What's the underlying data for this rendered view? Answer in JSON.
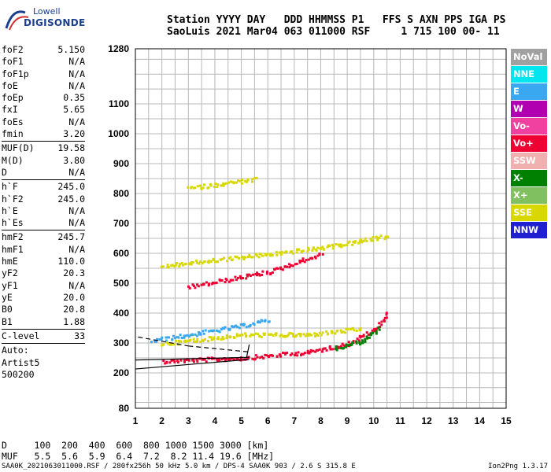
{
  "logo": {
    "top": "Lowell",
    "bottom": "DIGISONDE"
  },
  "header": {
    "line1": "Station YYYY DAY   DDD HHMMSS P1   FFS S AXN PPS IGA PS",
    "line2": "SaoLuis 2021 Mar04 063 011000 RSF     1 715 100 00- 11"
  },
  "params": {
    "g1": [
      {
        "name": "foF2",
        "value": "5.150"
      },
      {
        "name": "foF1",
        "value": "N/A"
      },
      {
        "name": "foF1p",
        "value": "N/A"
      },
      {
        "name": "foE",
        "value": "N/A"
      },
      {
        "name": "foEp",
        "value": "0.35"
      },
      {
        "name": "fxI",
        "value": "5.65"
      },
      {
        "name": "foEs",
        "value": "N/A"
      },
      {
        "name": "fmin",
        "value": "3.20"
      }
    ],
    "g2": [
      {
        "name": "MUF(D)",
        "value": "19.58"
      },
      {
        "name": "M(D)",
        "value": "3.80"
      },
      {
        "name": "D",
        "value": "N/A"
      }
    ],
    "g3": [
      {
        "name": "h`F",
        "value": "245.0"
      },
      {
        "name": "h`F2",
        "value": "245.0"
      },
      {
        "name": "h`E",
        "value": "N/A"
      },
      {
        "name": "h`Es",
        "value": "N/A"
      }
    ],
    "g4": [
      {
        "name": "hmF2",
        "value": "245.7"
      },
      {
        "name": "hmF1",
        "value": "N/A"
      },
      {
        "name": "hmE",
        "value": "110.0"
      },
      {
        "name": "yF2",
        "value": "20.3"
      },
      {
        "name": "yF1",
        "value": "N/A"
      },
      {
        "name": "yE",
        "value": "20.0"
      },
      {
        "name": "B0",
        "value": "20.8"
      },
      {
        "name": "B1",
        "value": "1.88"
      }
    ],
    "g5": [
      {
        "name": "C-level",
        "value": "33"
      }
    ],
    "artist": [
      "Auto:",
      "Artist5",
      "500200"
    ]
  },
  "legend": [
    {
      "label": "NoVal",
      "color": "#a0a0a0"
    },
    {
      "label": "NNE",
      "color": "#00e5ee"
    },
    {
      "label": "E",
      "color": "#3aa8f0"
    },
    {
      "label": "W",
      "color": "#b000b0"
    },
    {
      "label": "Vo-",
      "color": "#f040a0"
    },
    {
      "label": "Vo+",
      "color": "#ee0033"
    },
    {
      "label": "SSW",
      "color": "#f0b0b0"
    },
    {
      "label": "X-",
      "color": "#008000"
    },
    {
      "label": "X+",
      "color": "#80c060"
    },
    {
      "label": "SSE",
      "color": "#d8d800"
    },
    {
      "label": "NNW",
      "color": "#2020d0"
    }
  ],
  "bottom": {
    "line1": "D     100  200  400  600  800 1000 1500 3000 [km]",
    "line2": "MUF   5.5  5.6  5.9  6.4  7.2  8.2 11.4 19.6 [MHz]"
  },
  "footer": {
    "left": "SAA0K_2021063011000.RSF / 280fx256h 50 kHz 5.0 km / DPS-4 SAA0K 903 / 2.6 S 315.8 E",
    "right": "Ion2Png 1.3.17"
  },
  "chart_data": {
    "type": "scatter",
    "x_ticks": [
      "1",
      "2",
      "3",
      "4",
      "5",
      "6",
      "7",
      "8",
      "9",
      "10",
      "11",
      "12",
      "13",
      "14",
      "15"
    ],
    "y_ticks": [
      "80",
      "200",
      "300",
      "400",
      "500",
      "600",
      "700",
      "800",
      "900",
      "1000",
      "1100",
      "1280"
    ],
    "xlim": [
      1,
      15
    ],
    "ylim": [
      80,
      1280
    ],
    "y_scale": "nonlinear",
    "grid": true,
    "traces": [
      {
        "color_key": "Vo+",
        "segments": [
          [
            2.0,
            242,
            5.0,
            252
          ],
          [
            5.0,
            252,
            7.5,
            272
          ],
          [
            7.5,
            272,
            9.0,
            300
          ],
          [
            9.0,
            300,
            10.0,
            345
          ],
          [
            10.0,
            345,
            10.5,
            400
          ]
        ]
      },
      {
        "color_key": "X-",
        "segments": [
          [
            8.5,
            284,
            9.6,
            310
          ],
          [
            9.6,
            310,
            10.2,
            350
          ]
        ]
      },
      {
        "color_key": "E",
        "segments": [
          [
            1.6,
            310,
            3.0,
            330
          ],
          [
            3.0,
            330,
            5.0,
            360
          ],
          [
            5.0,
            360,
            6.0,
            380
          ]
        ]
      },
      {
        "color_key": "SSE",
        "segments": [
          [
            2.0,
            300,
            5.0,
            330
          ],
          [
            5.0,
            330,
            7.5,
            330
          ],
          [
            7.5,
            330,
            9.5,
            350
          ]
        ]
      },
      {
        "color_key": "Vo+",
        "segments": [
          [
            3.0,
            490,
            6.0,
            540
          ],
          [
            6.0,
            540,
            8.0,
            600
          ]
        ]
      },
      {
        "color_key": "SSE",
        "segments": [
          [
            2.0,
            560,
            5.0,
            590
          ],
          [
            5.0,
            590,
            8.0,
            620
          ],
          [
            8.0,
            620,
            10.5,
            660
          ]
        ]
      },
      {
        "color_key": "SSE",
        "segments": [
          [
            3.0,
            820,
            5.5,
            850
          ]
        ]
      }
    ],
    "model": [
      [
        1.0,
        213,
        5.3,
        245
      ],
      [
        1.0,
        243,
        5.3,
        252
      ],
      [
        5.2,
        252,
        5.3,
        295
      ]
    ],
    "model_dashed": [
      [
        1.1,
        320,
        3.0,
        290
      ],
      [
        3.0,
        290,
        5.3,
        270
      ]
    ]
  }
}
